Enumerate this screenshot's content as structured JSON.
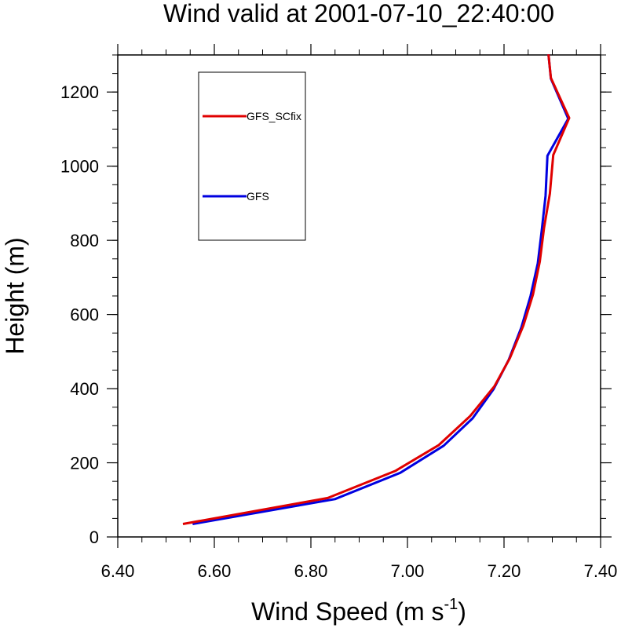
{
  "chart_data": {
    "type": "line",
    "title": "Wind valid at 2001-07-10_22:40:00",
    "xlabel": "Wind Speed (m s",
    "xlabel_sup": "-1",
    "xlabel_tail": ")",
    "ylabel": "Height (m)",
    "xlim": [
      6.4,
      7.4
    ],
    "ylim": [
      0,
      1300
    ],
    "xticks": [
      "6.40",
      "6.60",
      "6.80",
      "7.00",
      "7.20",
      "7.40"
    ],
    "yticks": [
      "0",
      "200",
      "400",
      "600",
      "800",
      "1000",
      "1200"
    ],
    "legend": "top-left",
    "series": [
      {
        "name": "GFS_SCfix",
        "color": "#e00000",
        "points": [
          [
            6.535,
            35
          ],
          [
            6.835,
            105
          ],
          [
            6.975,
            178
          ],
          [
            7.065,
            248
          ],
          [
            7.13,
            326
          ],
          [
            7.18,
            406
          ],
          [
            7.212,
            482
          ],
          [
            7.24,
            570
          ],
          [
            7.26,
            654
          ],
          [
            7.274,
            742
          ],
          [
            7.283,
            834
          ],
          [
            7.295,
            926
          ],
          [
            7.302,
            1030
          ],
          [
            7.335,
            1130
          ],
          [
            7.297,
            1238
          ],
          [
            7.292,
            1302
          ]
        ]
      },
      {
        "name": "GFS",
        "color": "#0000e0",
        "points": [
          [
            6.555,
            35
          ],
          [
            6.85,
            102
          ],
          [
            6.985,
            173
          ],
          [
            7.075,
            246
          ],
          [
            7.135,
            320
          ],
          [
            7.178,
            398
          ],
          [
            7.21,
            478
          ],
          [
            7.236,
            565
          ],
          [
            7.255,
            650
          ],
          [
            7.27,
            738
          ],
          [
            7.278,
            826
          ],
          [
            7.286,
            920
          ],
          [
            7.29,
            1028
          ],
          [
            7.333,
            1128
          ],
          [
            7.297,
            1236
          ],
          [
            7.292,
            1302
          ]
        ]
      }
    ]
  }
}
